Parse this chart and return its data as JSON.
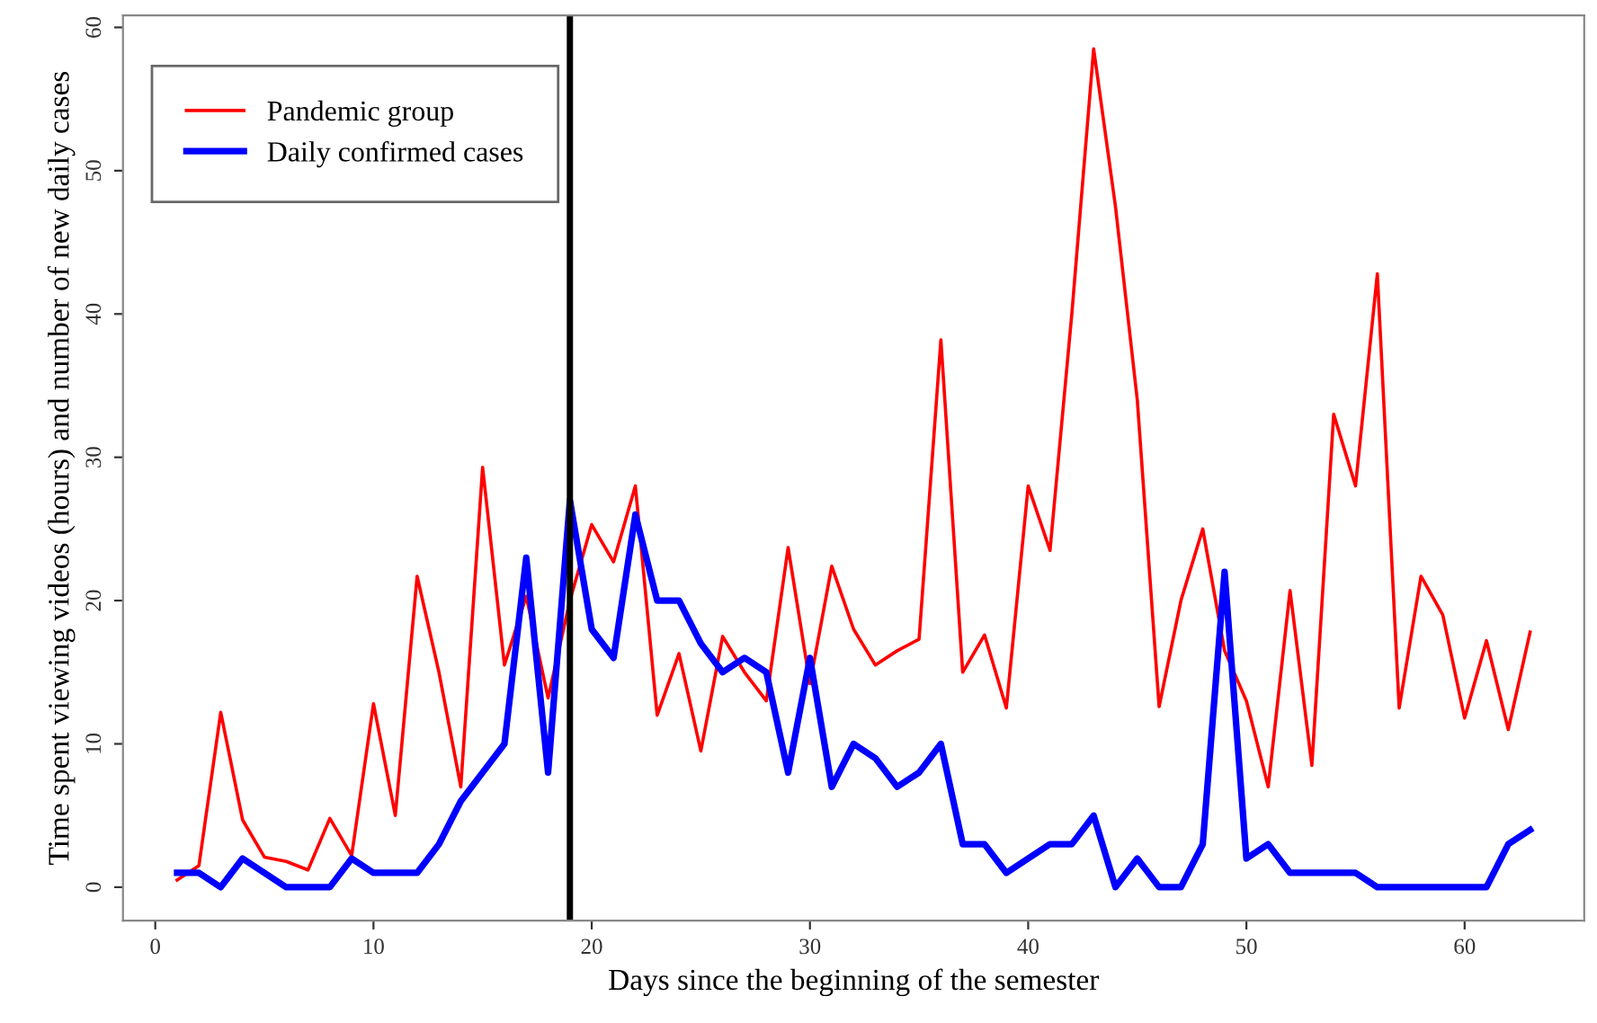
{
  "chart_data": {
    "type": "line",
    "xlabel": "Days since the beginning of the semester",
    "ylabel": "Time spent viewing videos (hours) and number of new daily cases",
    "x": [
      1,
      2,
      3,
      4,
      5,
      6,
      7,
      8,
      9,
      10,
      11,
      12,
      13,
      14,
      15,
      16,
      17,
      18,
      19,
      20,
      21,
      22,
      23,
      24,
      25,
      26,
      27,
      28,
      29,
      30,
      31,
      32,
      33,
      34,
      35,
      36,
      37,
      38,
      39,
      40,
      41,
      42,
      43,
      44,
      45,
      46,
      47,
      48,
      49,
      50,
      51,
      52,
      53,
      54,
      55,
      56,
      57,
      58,
      59,
      60,
      61,
      62,
      63
    ],
    "series": [
      {
        "name": "Pandemic group",
        "color": "#ff0000",
        "values": [
          0.5,
          1.5,
          12.2,
          4.7,
          2.1,
          1.8,
          1.2,
          4.8,
          2.2,
          12.8,
          5.0,
          21.7,
          15,
          7,
          29.3,
          15.5,
          20.3,
          13.2,
          20,
          25.3,
          22.7,
          28,
          12,
          16.3,
          9.5,
          17.5,
          15,
          13,
          23.7,
          14.2,
          22.4,
          18,
          15.5,
          16.5,
          17.3,
          38.2,
          15,
          17.6,
          12.5,
          28,
          23.5,
          40,
          58.5,
          47.5,
          34,
          12.6,
          20,
          25,
          16.5,
          13,
          7,
          20.7,
          8.5,
          33,
          28,
          42.8,
          12.5,
          21.7,
          19,
          11.8,
          17.2,
          11,
          17.8
        ]
      },
      {
        "name": "Daily confirmed cases",
        "color": "#0000ff",
        "values": [
          1,
          1,
          0,
          2,
          1,
          0,
          0,
          0,
          2,
          1,
          1,
          1,
          3,
          6,
          8,
          10,
          23,
          8,
          27,
          18,
          16,
          26,
          20,
          20,
          17,
          15,
          16,
          15,
          8,
          16,
          7,
          10,
          9,
          7,
          8,
          10,
          3,
          3,
          1,
          2,
          3,
          3,
          5,
          0,
          2,
          0,
          0,
          3,
          22,
          2,
          3,
          1,
          1,
          1,
          1,
          0,
          0,
          0,
          0,
          0,
          0,
          3,
          4
        ]
      }
    ],
    "xlim": [
      -1.48,
      65.48
    ],
    "ylim": [
      -2.34,
      60.84
    ],
    "xticks": [
      0,
      10,
      20,
      30,
      40,
      50,
      60
    ],
    "yticks": [
      0,
      10,
      20,
      30,
      40,
      50,
      60
    ],
    "ref_lines": [
      {
        "axis": "x",
        "value": 19,
        "color": "#000000"
      }
    ],
    "grid": false,
    "legend": "top left"
  }
}
